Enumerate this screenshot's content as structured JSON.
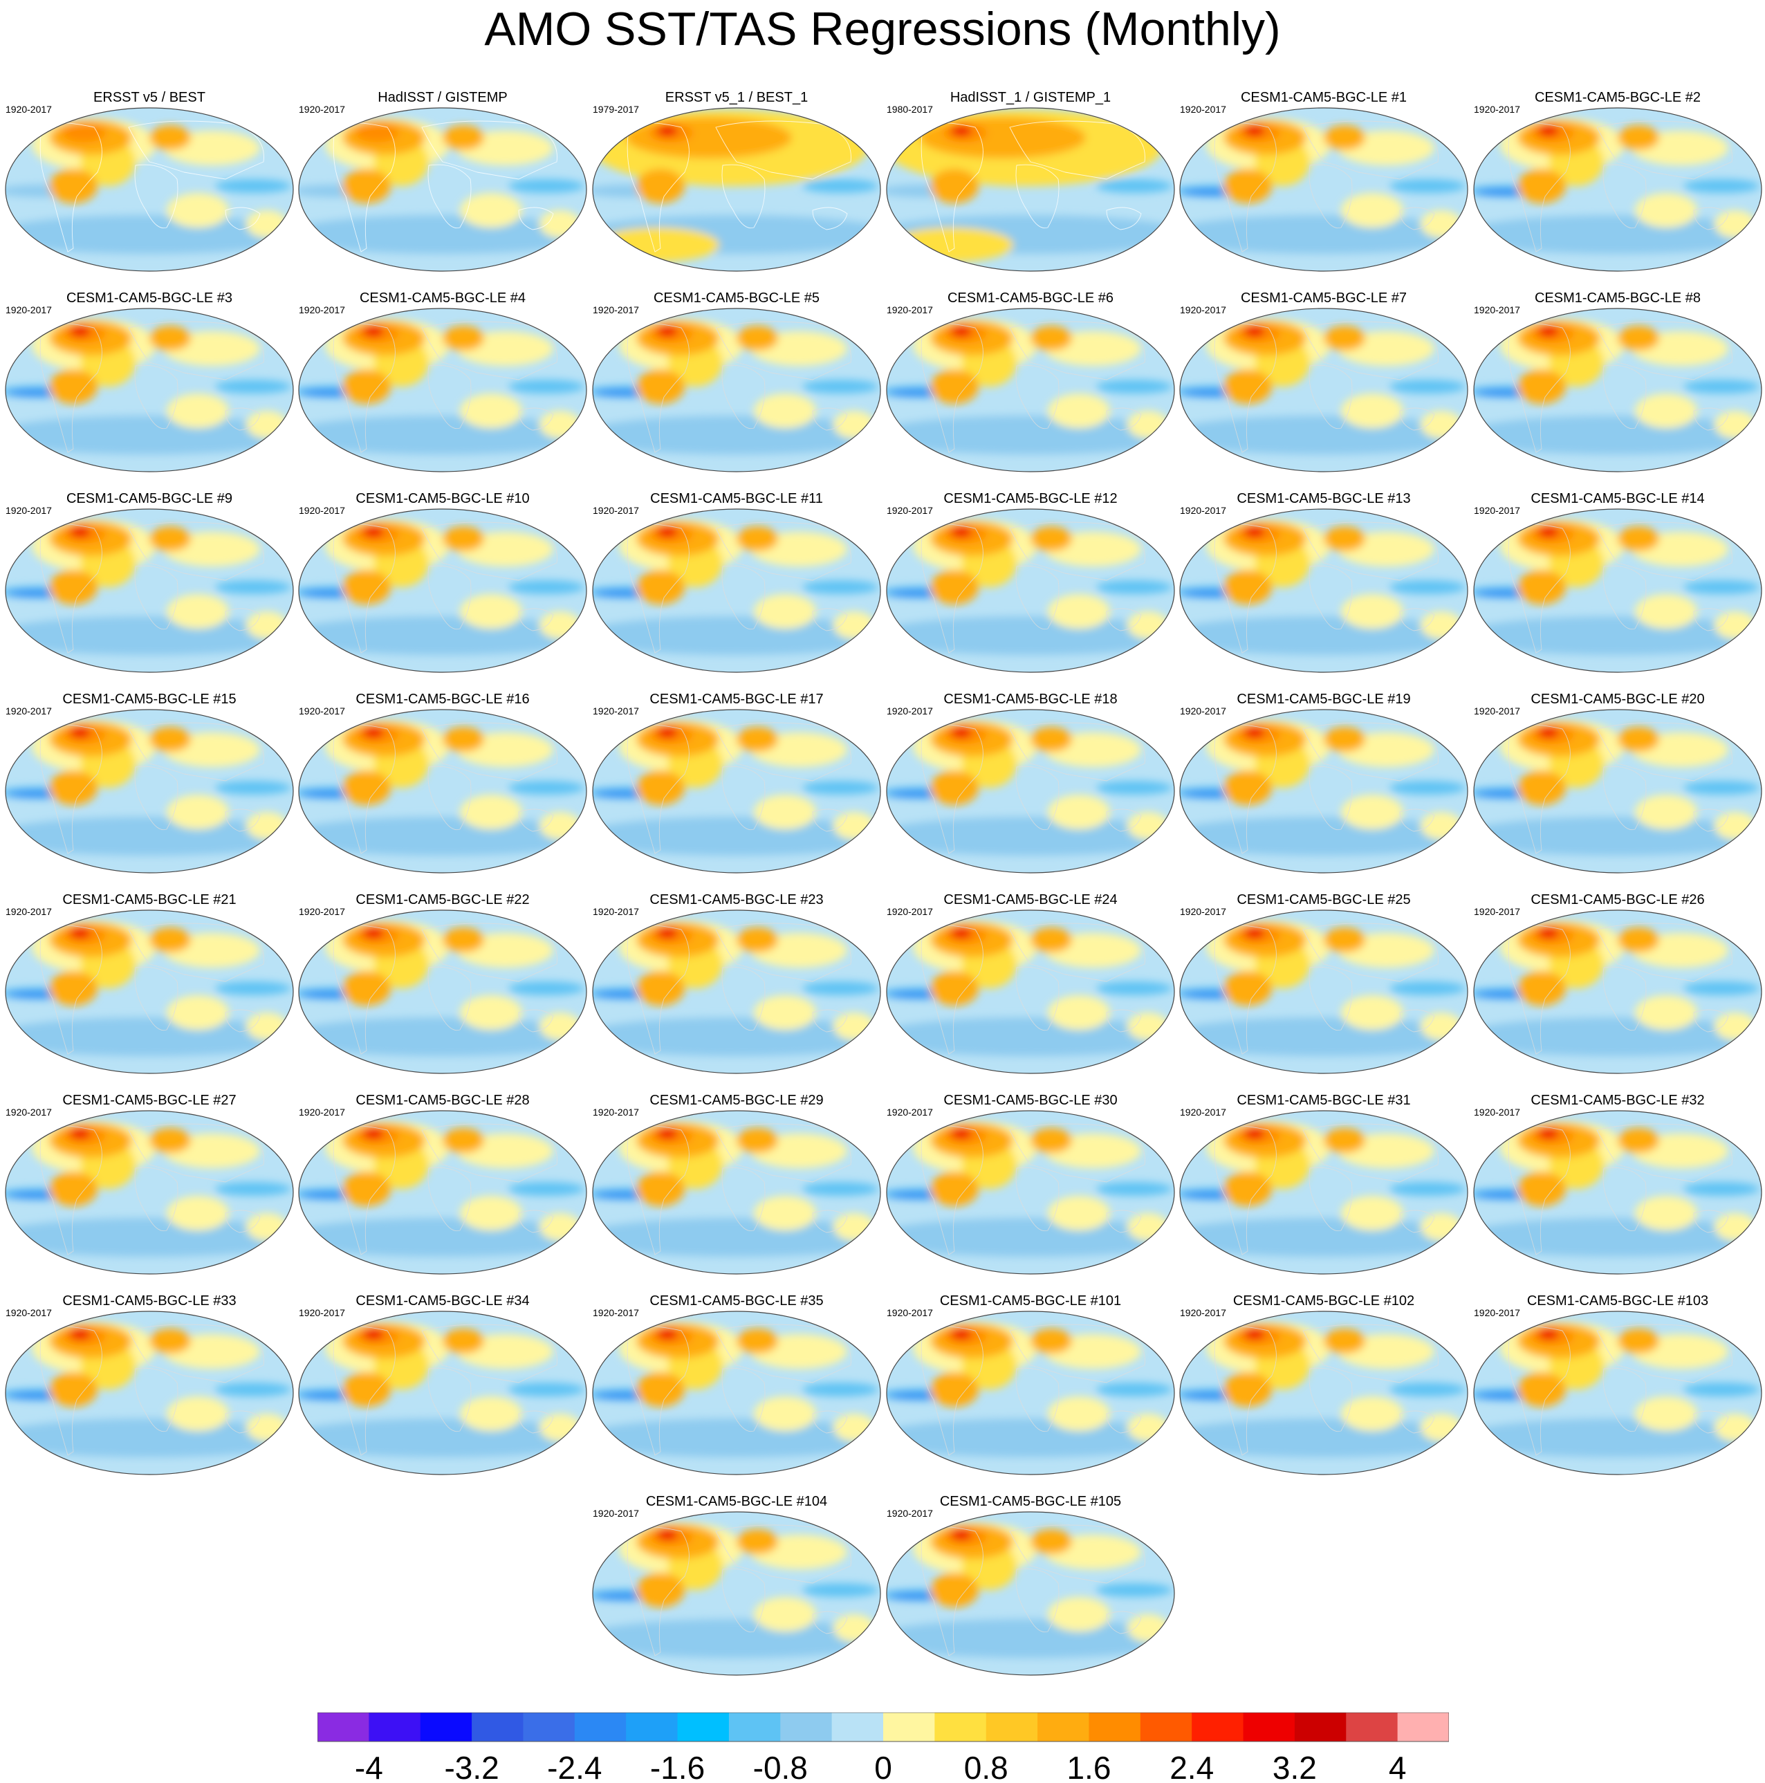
{
  "title": "AMO SST/TAS Regressions (Monthly)",
  "panels": [
    {
      "title": "ERSST v5 / BEST",
      "years": "1920-2017"
    },
    {
      "title": "HadISST / GISTEMP",
      "years": "1920-2017"
    },
    {
      "title": "ERSST v5_1 / BEST_1",
      "years": "1979-2017"
    },
    {
      "title": "HadISST_1 / GISTEMP_1",
      "years": "1980-2017"
    },
    {
      "title": "CESM1-CAM5-BGC-LE #1",
      "years": "1920-2017"
    },
    {
      "title": "CESM1-CAM5-BGC-LE #2",
      "years": "1920-2017"
    },
    {
      "title": "CESM1-CAM5-BGC-LE #3",
      "years": "1920-2017"
    },
    {
      "title": "CESM1-CAM5-BGC-LE #4",
      "years": "1920-2017"
    },
    {
      "title": "CESM1-CAM5-BGC-LE #5",
      "years": "1920-2017"
    },
    {
      "title": "CESM1-CAM5-BGC-LE #6",
      "years": "1920-2017"
    },
    {
      "title": "CESM1-CAM5-BGC-LE #7",
      "years": "1920-2017"
    },
    {
      "title": "CESM1-CAM5-BGC-LE #8",
      "years": "1920-2017"
    },
    {
      "title": "CESM1-CAM5-BGC-LE #9",
      "years": "1920-2017"
    },
    {
      "title": "CESM1-CAM5-BGC-LE #10",
      "years": "1920-2017"
    },
    {
      "title": "CESM1-CAM5-BGC-LE #11",
      "years": "1920-2017"
    },
    {
      "title": "CESM1-CAM5-BGC-LE #12",
      "years": "1920-2017"
    },
    {
      "title": "CESM1-CAM5-BGC-LE #13",
      "years": "1920-2017"
    },
    {
      "title": "CESM1-CAM5-BGC-LE #14",
      "years": "1920-2017"
    },
    {
      "title": "CESM1-CAM5-BGC-LE #15",
      "years": "1920-2017"
    },
    {
      "title": "CESM1-CAM5-BGC-LE #16",
      "years": "1920-2017"
    },
    {
      "title": "CESM1-CAM5-BGC-LE #17",
      "years": "1920-2017"
    },
    {
      "title": "CESM1-CAM5-BGC-LE #18",
      "years": "1920-2017"
    },
    {
      "title": "CESM1-CAM5-BGC-LE #19",
      "years": "1920-2017"
    },
    {
      "title": "CESM1-CAM5-BGC-LE #20",
      "years": "1920-2017"
    },
    {
      "title": "CESM1-CAM5-BGC-LE #21",
      "years": "1920-2017"
    },
    {
      "title": "CESM1-CAM5-BGC-LE #22",
      "years": "1920-2017"
    },
    {
      "title": "CESM1-CAM5-BGC-LE #23",
      "years": "1920-2017"
    },
    {
      "title": "CESM1-CAM5-BGC-LE #24",
      "years": "1920-2017"
    },
    {
      "title": "CESM1-CAM5-BGC-LE #25",
      "years": "1920-2017"
    },
    {
      "title": "CESM1-CAM5-BGC-LE #26",
      "years": "1920-2017"
    },
    {
      "title": "CESM1-CAM5-BGC-LE #27",
      "years": "1920-2017"
    },
    {
      "title": "CESM1-CAM5-BGC-LE #28",
      "years": "1920-2017"
    },
    {
      "title": "CESM1-CAM5-BGC-LE #29",
      "years": "1920-2017"
    },
    {
      "title": "CESM1-CAM5-BGC-LE #30",
      "years": "1920-2017"
    },
    {
      "title": "CESM1-CAM5-BGC-LE #31",
      "years": "1920-2017"
    },
    {
      "title": "CESM1-CAM5-BGC-LE #32",
      "years": "1920-2017"
    },
    {
      "title": "CESM1-CAM5-BGC-LE #33",
      "years": "1920-2017"
    },
    {
      "title": "CESM1-CAM5-BGC-LE #34",
      "years": "1920-2017"
    },
    {
      "title": "CESM1-CAM5-BGC-LE #35",
      "years": "1920-2017"
    },
    {
      "title": "CESM1-CAM5-BGC-LE #101",
      "years": "1920-2017"
    },
    {
      "title": "CESM1-CAM5-BGC-LE #102",
      "years": "1920-2017"
    },
    {
      "title": "CESM1-CAM5-BGC-LE #103",
      "years": "1920-2017"
    },
    {
      "title": "CESM1-CAM5-BGC-LE #104",
      "years": "1920-2017"
    },
    {
      "title": "CESM1-CAM5-BGC-LE #105",
      "years": "1920-2017"
    }
  ],
  "colorbar": {
    "colors": [
      "#8a2be2",
      "#3d10f5",
      "#0a0aff",
      "#3059e4",
      "#3a6ee8",
      "#2b88f4",
      "#1ea0f8",
      "#00bfff",
      "#5ec3f4",
      "#8ecbef",
      "#b9e2f6",
      "#fff6a0",
      "#ffe040",
      "#ffc825",
      "#ffac10",
      "#ff8c00",
      "#ff5a00",
      "#ff2000",
      "#ee0000",
      "#cc0000",
      "#dd4444",
      "#ffb0b0"
    ],
    "tick_labels": [
      "-4",
      "-3.2",
      "-2.4",
      "-1.6",
      "-0.8",
      "0",
      "0.8",
      "1.6",
      "2.4",
      "3.2",
      "4"
    ]
  },
  "palette": {
    "background_blue": "#b9e2f6",
    "mid_blue": "#8ecbef",
    "band_blue": "#5ec3f4",
    "deep_blue": "#2b88f4",
    "light_yellow": "#fff6a0",
    "yellow": "#ffe040",
    "orange": "#ffac10",
    "dark_orange": "#ff8c00",
    "red": "#ee0000"
  }
}
